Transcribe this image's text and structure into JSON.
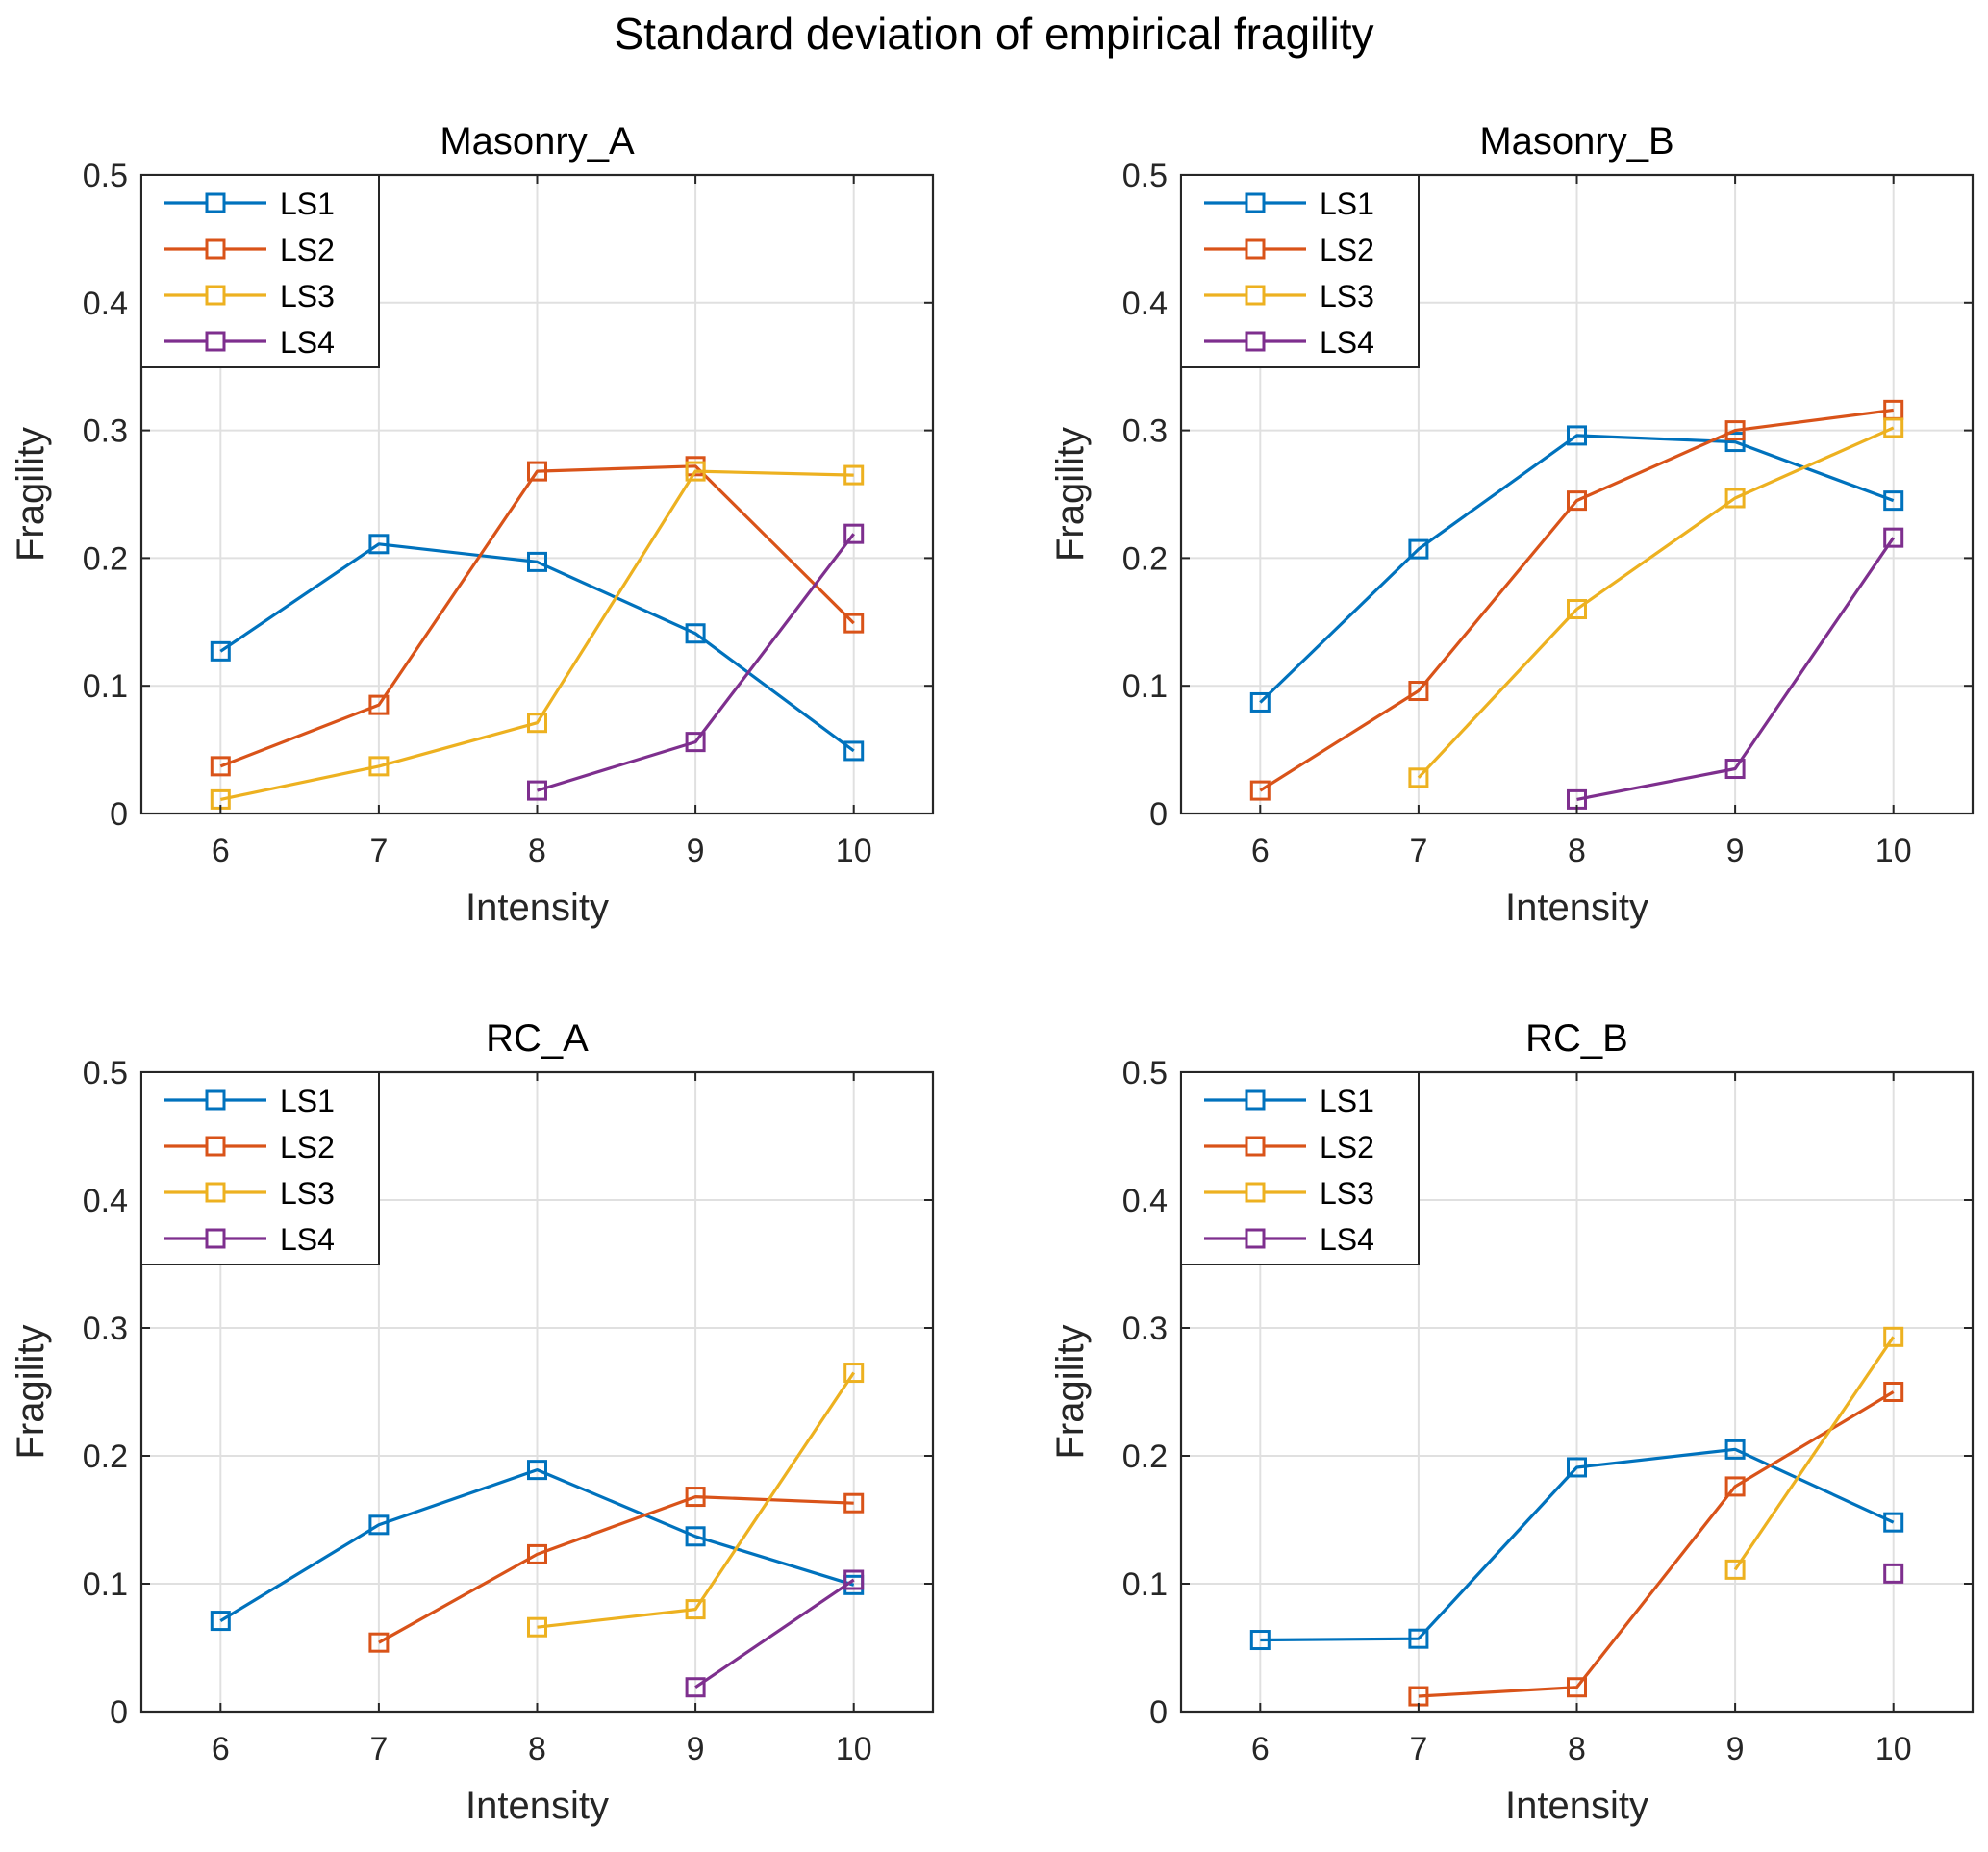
{
  "figure": {
    "title": "Standard deviation of empirical fragility"
  },
  "colors": {
    "LS1": "#0072BD",
    "LS2": "#D95319",
    "LS3": "#EDB120",
    "LS4": "#7E2F8E",
    "grid": "#e0e0e0",
    "axis": "#262626"
  },
  "chart_data": [
    {
      "type": "line",
      "title": "Masonry_A",
      "xlabel": "Intensity",
      "ylabel": "Fragility",
      "xlim": [
        5.5,
        10.5
      ],
      "ylim": [
        0,
        0.5
      ],
      "xticks": [
        6,
        7,
        8,
        9,
        10
      ],
      "yticks": [
        0,
        0.1,
        0.2,
        0.3,
        0.4,
        0.5
      ],
      "yticklabels": [
        "0",
        "0.1",
        "0.2",
        "0.3",
        "0.4",
        "0.5"
      ],
      "grid": true,
      "legend": "top-left",
      "series": [
        {
          "name": "LS1",
          "x": [
            6,
            7,
            8,
            9,
            10
          ],
          "values": [
            0.127,
            0.211,
            0.197,
            0.141,
            0.049
          ]
        },
        {
          "name": "LS2",
          "x": [
            6,
            7,
            8,
            9,
            10
          ],
          "values": [
            0.037,
            0.085,
            0.268,
            0.272,
            0.149
          ]
        },
        {
          "name": "LS3",
          "x": [
            6,
            7,
            8,
            9,
            10
          ],
          "values": [
            0.011,
            0.037,
            0.071,
            0.268,
            0.265
          ]
        },
        {
          "name": "LS4",
          "x": [
            8,
            9,
            10
          ],
          "values": [
            0.018,
            0.056,
            0.219
          ]
        }
      ]
    },
    {
      "type": "line",
      "title": "Masonry_B",
      "xlabel": "Intensity",
      "ylabel": "Fragility",
      "xlim": [
        5.5,
        10.5
      ],
      "ylim": [
        0,
        0.5
      ],
      "xticks": [
        6,
        7,
        8,
        9,
        10
      ],
      "yticks": [
        0,
        0.1,
        0.2,
        0.3,
        0.4,
        0.5
      ],
      "yticklabels": [
        "0",
        "0.1",
        "0.2",
        "0.3",
        "0.4",
        "0.5"
      ],
      "grid": true,
      "legend": "top-left",
      "series": [
        {
          "name": "LS1",
          "x": [
            6,
            7,
            8,
            9,
            10
          ],
          "values": [
            0.087,
            0.207,
            0.296,
            0.291,
            0.245
          ]
        },
        {
          "name": "LS2",
          "x": [
            6,
            7,
            8,
            9,
            10
          ],
          "values": [
            0.018,
            0.096,
            0.245,
            0.3,
            0.316
          ]
        },
        {
          "name": "LS3",
          "x": [
            7,
            8,
            9,
            10
          ],
          "values": [
            0.028,
            0.16,
            0.247,
            0.302
          ]
        },
        {
          "name": "LS4",
          "x": [
            8,
            9,
            10
          ],
          "values": [
            0.011,
            0.035,
            0.216
          ]
        }
      ]
    },
    {
      "type": "line",
      "title": "RC_A",
      "xlabel": "Intensity",
      "ylabel": "Fragility",
      "xlim": [
        5.5,
        10.5
      ],
      "ylim": [
        0,
        0.5
      ],
      "xticks": [
        6,
        7,
        8,
        9,
        10
      ],
      "yticks": [
        0,
        0.1,
        0.2,
        0.3,
        0.4,
        0.5
      ],
      "yticklabels": [
        "0",
        "0.1",
        "0.2",
        "0.3",
        "0.4",
        "0.5"
      ],
      "grid": true,
      "legend": "top-left",
      "series": [
        {
          "name": "LS1",
          "x": [
            6,
            7,
            8,
            9,
            10
          ],
          "values": [
            0.071,
            0.146,
            0.189,
            0.137,
            0.099
          ]
        },
        {
          "name": "LS2",
          "x": [
            7,
            8,
            9,
            10
          ],
          "values": [
            0.054,
            0.123,
            0.168,
            0.163
          ]
        },
        {
          "name": "LS3",
          "x": [
            8,
            9,
            10
          ],
          "values": [
            0.066,
            0.08,
            0.265
          ]
        },
        {
          "name": "LS4",
          "x": [
            9,
            10
          ],
          "values": [
            0.019,
            0.103
          ]
        }
      ]
    },
    {
      "type": "line",
      "title": "RC_B",
      "xlabel": "Intensity",
      "ylabel": "Fragility",
      "xlim": [
        5.5,
        10.5
      ],
      "ylim": [
        0,
        0.5
      ],
      "xticks": [
        6,
        7,
        8,
        9,
        10
      ],
      "yticks": [
        0,
        0.1,
        0.2,
        0.3,
        0.4,
        0.5
      ],
      "yticklabels": [
        "0",
        "0.1",
        "0.2",
        "0.3",
        "0.4",
        "0.5"
      ],
      "grid": true,
      "legend": "top-left",
      "series": [
        {
          "name": "LS1",
          "x": [
            6,
            7,
            8,
            9,
            10
          ],
          "values": [
            0.056,
            0.057,
            0.191,
            0.205,
            0.148
          ]
        },
        {
          "name": "LS2",
          "x": [
            7,
            8,
            9,
            10
          ],
          "values": [
            0.012,
            0.019,
            0.176,
            0.25
          ]
        },
        {
          "name": "LS3",
          "x": [
            9,
            10
          ],
          "values": [
            0.111,
            0.293
          ]
        },
        {
          "name": "LS4",
          "x": [
            10
          ],
          "values": [
            0.108
          ]
        }
      ]
    }
  ]
}
